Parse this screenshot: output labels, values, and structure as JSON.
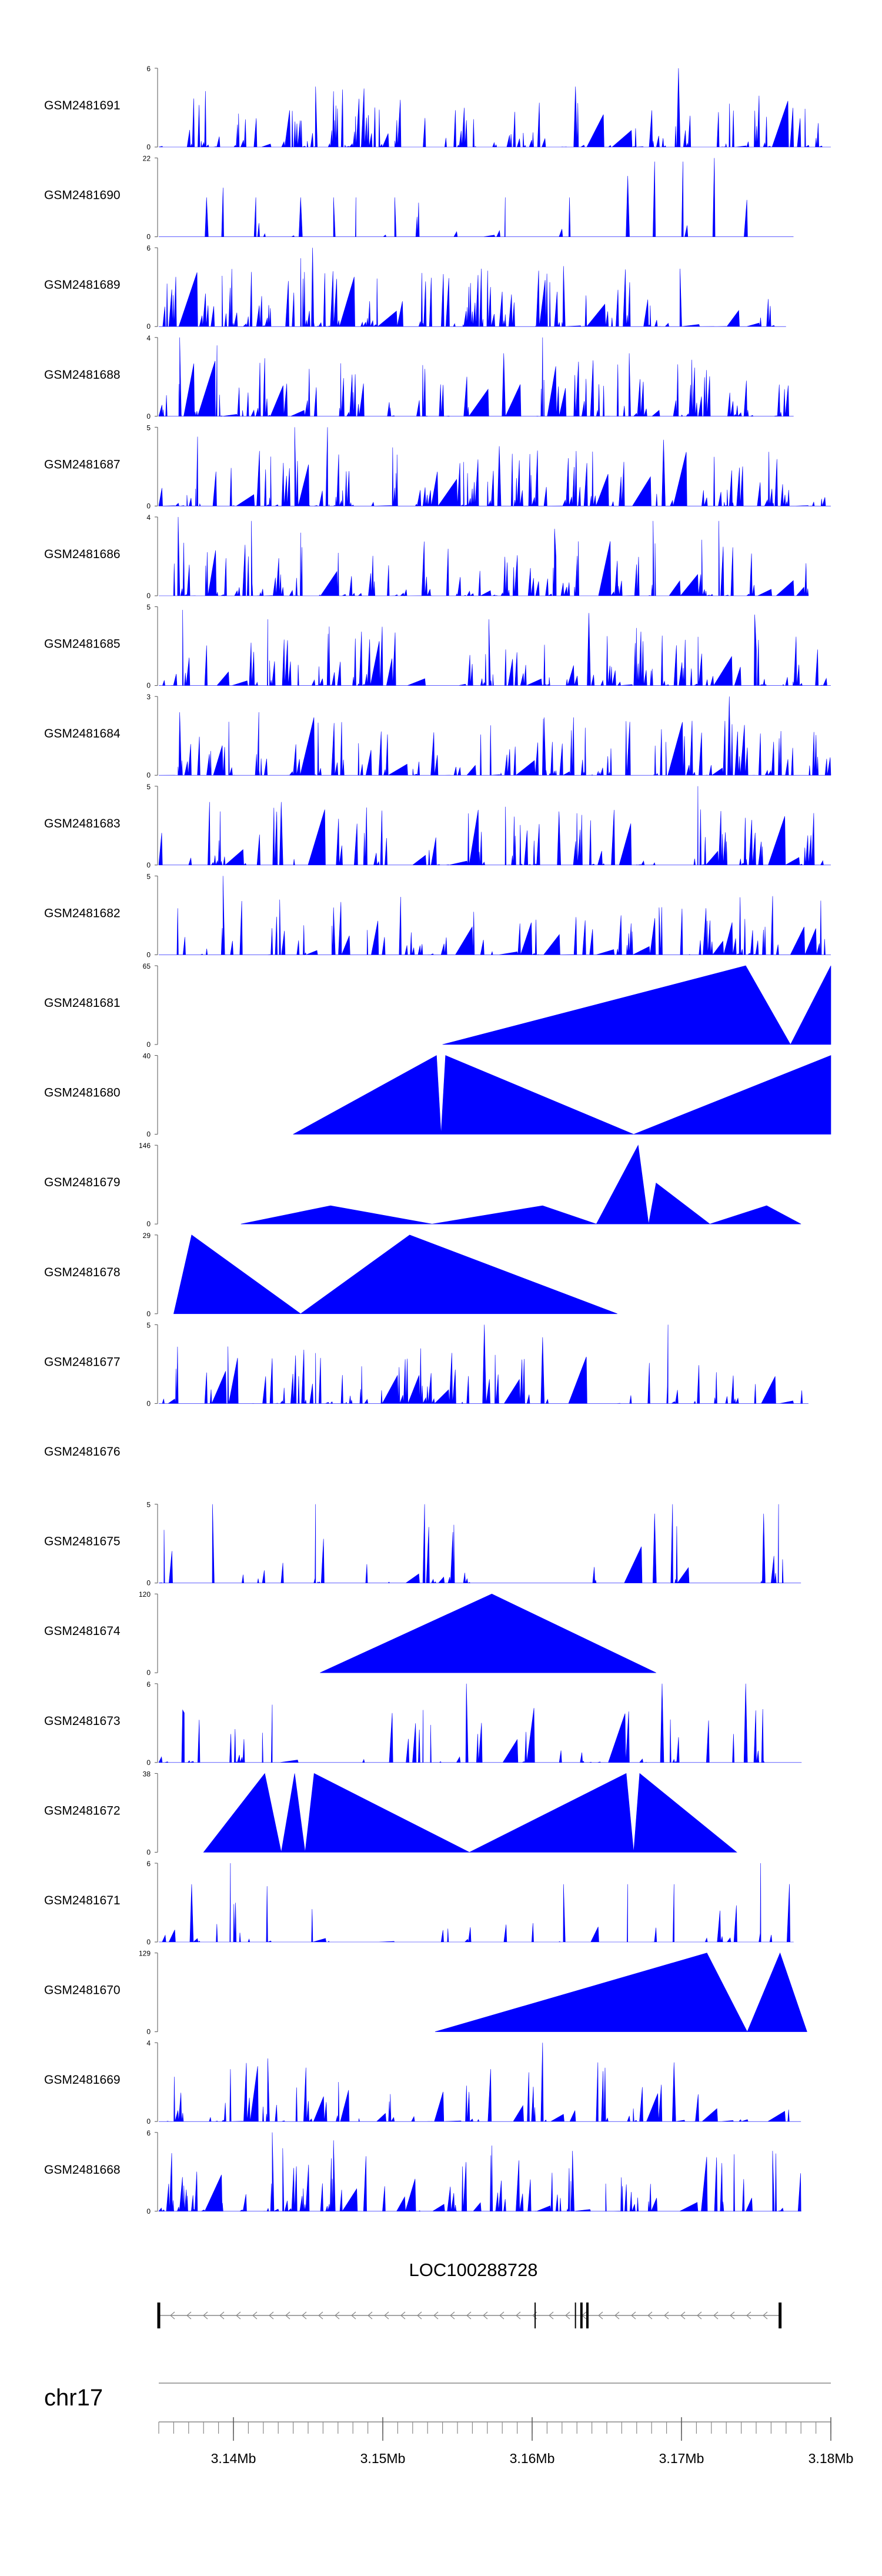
{
  "chart_data": {
    "type": "area",
    "fill_color": "#0000ff",
    "xlim_mb": [
      3.135,
      3.18
    ],
    "tracks": [
      {
        "name": "GSM2481691",
        "ymax": 6,
        "mode": "dense",
        "seed": 11,
        "density": 0.55,
        "coverage": [
          [
            3.135,
            3.18
          ]
        ],
        "peaks": [
          [
            3.1698,
            6
          ],
          [
            3.1629,
            4.6
          ],
          [
            3.1455,
            4.6
          ],
          [
            3.1377,
            3.2
          ]
        ]
      },
      {
        "name": "GSM2481690",
        "ymax": 22,
        "mode": "dense",
        "seed": 12,
        "density": 0.05,
        "coverage": [
          [
            3.135,
            3.1775
          ]
        ],
        "peaks": [
          [
            3.1722,
            22
          ],
          [
            3.1701,
            21
          ],
          [
            3.1682,
            21
          ],
          [
            3.1664,
            17
          ],
          [
            3.1445,
            11
          ],
          [
            3.1582,
            11
          ],
          [
            3.1382,
            11
          ],
          [
            3.1508,
            11
          ],
          [
            3.1625,
            11
          ],
          [
            3.1415,
            11
          ],
          [
            3.1467,
            11
          ],
          [
            3.1482,
            11
          ]
        ]
      },
      {
        "name": "GSM2481689",
        "ymax": 6,
        "mode": "dense",
        "seed": 13,
        "density": 0.6,
        "coverage": [
          [
            3.135,
            3.177
          ]
        ],
        "peaks": [
          [
            3.1453,
            6
          ],
          [
            3.1445,
            5.2
          ],
          [
            3.1621,
            4.6
          ],
          [
            3.1699,
            4.4
          ],
          [
            3.1566,
            4.4
          ]
        ]
      },
      {
        "name": "GSM2481688",
        "ymax": 4,
        "mode": "dense",
        "seed": 14,
        "density": 0.55,
        "coverage": [
          [
            3.135,
            3.1775
          ]
        ],
        "peaks": [
          [
            3.1364,
            4
          ],
          [
            3.1607,
            4
          ],
          [
            3.1389,
            3.6
          ],
          [
            3.1581,
            3.2
          ],
          [
            3.1665,
            3.2
          ]
        ]
      },
      {
        "name": "GSM2481687",
        "ymax": 5,
        "mode": "dense",
        "seed": 15,
        "density": 0.6,
        "coverage": [
          [
            3.135,
            3.18
          ]
        ],
        "peaks": [
          [
            3.1441,
            5
          ],
          [
            3.1463,
            5
          ],
          [
            3.1376,
            4.4
          ],
          [
            3.1688,
            4.2
          ],
          [
            3.1578,
            3.8
          ]
        ]
      },
      {
        "name": "GSM2481686",
        "ymax": 4,
        "mode": "dense",
        "seed": 16,
        "density": 0.55,
        "coverage": [
          [
            3.135,
            3.1785
          ]
        ],
        "peaks": [
          [
            3.1363,
            4
          ],
          [
            3.1412,
            3.8
          ],
          [
            3.1681,
            3.8
          ],
          [
            3.1725,
            3.8
          ],
          [
            3.1445,
            3.2
          ],
          [
            3.1615,
            3.4
          ]
        ]
      },
      {
        "name": "GSM2481685",
        "ymax": 5,
        "mode": "dense",
        "seed": 17,
        "density": 0.6,
        "coverage": [
          [
            3.135,
            3.18
          ]
        ],
        "peaks": [
          [
            3.1366,
            4.8
          ],
          [
            3.1638,
            4.6
          ],
          [
            3.1749,
            4.5
          ],
          [
            3.1423,
            4.2
          ],
          [
            3.1571,
            4.2
          ]
        ]
      },
      {
        "name": "GSM2481684",
        "ymax": 3,
        "mode": "dense",
        "seed": 18,
        "density": 0.6,
        "coverage": [
          [
            3.135,
            3.18
          ]
        ],
        "peaks": [
          [
            3.1732,
            3
          ],
          [
            3.1417,
            2.4
          ],
          [
            3.1608,
            2.2
          ],
          [
            3.1364,
            2.4
          ]
        ]
      },
      {
        "name": "GSM2481683",
        "ymax": 5,
        "mode": "dense",
        "seed": 19,
        "density": 0.5,
        "coverage": [
          [
            3.135,
            3.18
          ]
        ],
        "peaks": [
          [
            3.1711,
            5
          ],
          [
            3.1384,
            4
          ],
          [
            3.1432,
            4
          ],
          [
            3.1618,
            3.4
          ]
        ]
      },
      {
        "name": "GSM2481682",
        "ymax": 5,
        "mode": "dense",
        "seed": 20,
        "density": 0.45,
        "coverage": [
          [
            3.135,
            3.18
          ]
        ],
        "peaks": [
          [
            3.1393,
            5
          ],
          [
            3.1431,
            3.5
          ],
          [
            3.1467,
            3
          ],
          [
            3.1685,
            3
          ]
        ]
      },
      {
        "name": "GSM2481681",
        "ymax": 65,
        "mode": "poly",
        "points": [
          [
            3.154,
            0
          ],
          [
            3.1743,
            65
          ],
          [
            3.1773,
            0
          ],
          [
            3.18,
            65
          ],
          [
            3.18,
            0
          ]
        ]
      },
      {
        "name": "GSM2481680",
        "ymax": 40,
        "mode": "poly",
        "points": [
          [
            3.144,
            0
          ],
          [
            3.1536,
            40
          ],
          [
            3.1539,
            0
          ],
          [
            3.1542,
            40
          ],
          [
            3.1668,
            0
          ],
          [
            3.18,
            40
          ],
          [
            3.18,
            0
          ]
        ]
      },
      {
        "name": "GSM2481679",
        "ymax": 146,
        "mode": "poly",
        "points": [
          [
            3.1405,
            0
          ],
          [
            3.1465,
            34
          ],
          [
            3.1533,
            0
          ],
          [
            3.1607,
            34
          ],
          [
            3.1643,
            0
          ],
          [
            3.1671,
            146
          ],
          [
            3.1678,
            0
          ],
          [
            3.1683,
            76
          ],
          [
            3.1719,
            0
          ],
          [
            3.1757,
            34
          ],
          [
            3.178,
            0
          ]
        ]
      },
      {
        "name": "GSM2481678",
        "ymax": 29,
        "mode": "poly",
        "points": [
          [
            3.136,
            0
          ],
          [
            3.1372,
            29
          ],
          [
            3.1445,
            0
          ],
          [
            3.1518,
            29
          ],
          [
            3.1657,
            0
          ]
        ]
      },
      {
        "name": "GSM2481677",
        "ymax": 5,
        "mode": "dense",
        "seed": 21,
        "density": 0.5,
        "coverage": [
          [
            3.135,
            3.1785
          ]
        ],
        "peaks": [
          [
            3.1568,
            5
          ],
          [
            3.1691,
            5
          ],
          [
            3.1607,
            4.2
          ],
          [
            3.1455,
            3.2
          ]
        ]
      },
      {
        "name": "GSM2481676",
        "ymax": null,
        "mode": "empty"
      },
      {
        "name": "GSM2481675",
        "ymax": 5,
        "mode": "dense",
        "seed": 22,
        "density": 0.3,
        "coverage": [
          [
            3.135,
            3.178
          ]
        ],
        "peaks": [
          [
            3.1386,
            5
          ],
          [
            3.1455,
            5
          ],
          [
            3.1528,
            5
          ],
          [
            3.1694,
            5
          ],
          [
            3.1765,
            5
          ],
          [
            3.1682,
            4.4
          ],
          [
            3.1755,
            4.4
          ]
        ]
      },
      {
        "name": "GSM2481674",
        "ymax": 120,
        "mode": "poly",
        "points": [
          [
            3.1458,
            0
          ],
          [
            3.1573,
            120
          ],
          [
            3.1683,
            0
          ]
        ]
      },
      {
        "name": "GSM2481673",
        "ymax": 6,
        "mode": "dense",
        "seed": 23,
        "density": 0.25,
        "coverage": [
          [
            3.135,
            3.178
          ]
        ],
        "peaks": [
          [
            3.1556,
            6
          ],
          [
            3.1687,
            6
          ],
          [
            3.1743,
            6
          ],
          [
            3.1527,
            4
          ],
          [
            3.1366,
            4
          ],
          [
            3.1426,
            4.4
          ]
        ]
      },
      {
        "name": "GSM2481672",
        "ymax": 38,
        "mode": "poly",
        "points": [
          [
            3.138,
            0
          ],
          [
            3.1421,
            38
          ],
          [
            3.1432,
            0
          ],
          [
            3.1441,
            38
          ],
          [
            3.1448,
            0
          ],
          [
            3.1454,
            38
          ],
          [
            3.1558,
            0
          ],
          [
            3.1663,
            38
          ],
          [
            3.1668,
            0
          ],
          [
            3.1672,
            38
          ],
          [
            3.1737,
            0
          ]
        ]
      },
      {
        "name": "GSM2481671",
        "ymax": 6,
        "mode": "dense",
        "seed": 24,
        "density": 0.22,
        "coverage": [
          [
            3.135,
            3.1775
          ]
        ],
        "peaks": [
          [
            3.1398,
            6
          ],
          [
            3.1753,
            6
          ],
          [
            3.1372,
            4.4
          ],
          [
            3.1621,
            4.4
          ],
          [
            3.1664,
            4.4
          ],
          [
            3.1695,
            4.4
          ]
        ]
      },
      {
        "name": "GSM2481670",
        "ymax": 129,
        "mode": "poly",
        "points": [
          [
            3.1535,
            0
          ],
          [
            3.1717,
            129
          ],
          [
            3.1744,
            0
          ],
          [
            3.1766,
            129
          ],
          [
            3.1784,
            0
          ]
        ]
      },
      {
        "name": "GSM2481669",
        "ymax": 4,
        "mode": "dense",
        "seed": 25,
        "density": 0.5,
        "coverage": [
          [
            3.135,
            3.178
          ]
        ],
        "peaks": [
          [
            3.1607,
            4
          ],
          [
            3.1423,
            3.2
          ],
          [
            3.1695,
            3
          ],
          [
            3.1644,
            3
          ]
        ]
      },
      {
        "name": "GSM2481668",
        "ymax": 6,
        "mode": "dense",
        "seed": 26,
        "density": 0.5,
        "coverage": [
          [
            3.135,
            3.178
          ]
        ],
        "peaks": [
          [
            3.1426,
            6
          ],
          [
            3.1467,
            5.4
          ],
          [
            3.1573,
            5
          ],
          [
            3.1433,
            4.8
          ],
          [
            3.1627,
            4.6
          ],
          [
            3.1761,
            4.6
          ]
        ]
      }
    ],
    "gene": {
      "name": "LOC100288728",
      "start": 3.135,
      "end": 3.1766,
      "boundaries": [
        3.135,
        3.1602,
        3.1629,
        3.1633,
        3.1637,
        3.1766
      ],
      "strand": "-"
    },
    "axis": {
      "chromosome": "chr17",
      "tick_labels": [
        "3.14Mb",
        "3.15Mb",
        "3.16Mb",
        "3.17Mb",
        "3.18Mb"
      ],
      "tick_values": [
        3.14,
        3.15,
        3.16,
        3.17,
        3.18
      ],
      "minor_step": 0.001
    }
  }
}
